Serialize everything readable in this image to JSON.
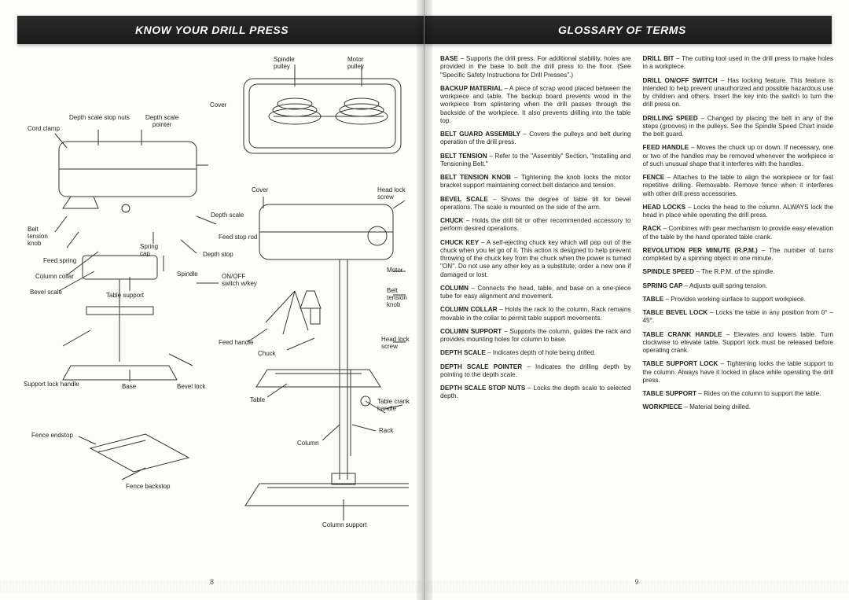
{
  "left": {
    "header": "KNOW YOUR DRILL PRESS",
    "page_number": "8",
    "labels": {
      "spindle_pulley": "Spindle\npulley",
      "motor_pulley": "Motor\npulley",
      "cover_top": "Cover",
      "depth_scale_stop_nuts": "Depth scale stop nuts",
      "depth_scale_pointer": "Depth scale\npointer",
      "cord_clamp": "Cord clamp",
      "depth_scale": "Depth scale",
      "belt_tension_knob_l": "Belt\ntension\nknob",
      "spring_cap": "Spring\ncap",
      "feed_stop_rod": "Feed stop rod",
      "feed_spring": "Feed spring",
      "depth_stop": "Depth stop",
      "column_collar": "Column collar",
      "spindle": "Spindle",
      "bevel_scale": "Bevel scale",
      "table_support_l": "Table support",
      "onoff_switch": "ON/OFF\nswitch w/key",
      "support_lock_handle": "Support lock handle",
      "base": "Base",
      "bevel_lock": "Bevel lock",
      "feed_handle": "Feed handle",
      "chuck": "Chuck",
      "table": "Table",
      "column": "Column",
      "fence_endstop": "Fence endstop",
      "fence_backstop": "Fence backstop",
      "column_support": "Column support",
      "cover_r": "Cover",
      "head_lock_screw_top": "Head lock\nscrew",
      "motor": "Motor",
      "belt_tension_knob_r": "Belt\ntension\nknob",
      "head_lock_screw_bot": "Head lock\nscrew",
      "table_crank_handle": "Table crank\nhandle",
      "rack": "Rack"
    }
  },
  "right": {
    "header": "GLOSSARY OF TERMS",
    "page_number": "9",
    "entries": [
      {
        "term": "BASE",
        "def": "– Supports the drill press. For additional stability, holes are provided in the base to bolt the drill press to the floor. (See \"Specific Safety Instructions for Drill Presses\".)"
      },
      {
        "term": "BACKUP MATERIAL",
        "def": "– A piece of scrap wood placed between the workpiece and table. The backup board prevents wood in the workpiece from splintering when the drill passes through the backside of the workpiece. It also prevents drilling into the table top."
      },
      {
        "term": "BELT GUARD ASSEMBLY",
        "def": "– Covers the pulleys and belt during operation of the drill press."
      },
      {
        "term": "BELT TENSION",
        "def": "– Refer to the \"Assembly\" Section, \"Installing and Tensioning Belt.\""
      },
      {
        "term": "BELT TENSION KNOB",
        "def": "– Tightening the knob locks the motor bracket support maintaining correct belt distance and tension."
      },
      {
        "term": "BEVEL SCALE",
        "def": "– Shows the degree of table tilt for bevel operations. The scale is mounted on the side of the arm."
      },
      {
        "term": "CHUCK",
        "def": "– Holds the drill bit or other recommended accessory to perform desired operations."
      },
      {
        "term": "CHUCK KEY",
        "def": "– A self-ejecting chuck key which will pop out of the chuck when you let go of it. This action is designed to help prevent throwing of the chuck key from the chuck when the power is turned \"ON\". Do not use any other key as a substitute; order a new one if damaged or lost."
      },
      {
        "term": "COLUMN",
        "def": "– Connects the head, table, and base on a one-piece tube for easy alignment and movement."
      },
      {
        "term": "COLUMN COLLAR",
        "def": "– Holds the rack to the column. Rack remains movable in the collar to permit table support movements."
      },
      {
        "term": "COLUMN SUPPORT",
        "def": "– Supports the column, guides the rack and provides mounting holes for column to base."
      },
      {
        "term": "DEPTH SCALE",
        "def": "– Indicates depth of hole being drilled."
      },
      {
        "term": "DEPTH SCALE POINTER",
        "def": "– Indicates the drilling depth by pointing to the depth scale."
      },
      {
        "term": "DEPTH SCALE STOP NUTS",
        "def": "– Locks the depth scale to selected depth."
      },
      {
        "term": "DRILL BIT",
        "def": "– The cutting tool used in the drill press to make holes in a workpiece."
      },
      {
        "term": "DRILL ON/OFF SWITCH",
        "def": "– Has locking feature. This feature is intended to help prevent unauthorized and possible hazardous use by children and others. Insert the key into the switch to turn the drill press on."
      },
      {
        "term": "DRILLING SPEED",
        "def": "– Changed by placing the belt in any of the steps (grooves) in the pulleys. See the Spindle Speed Chart inside the belt guard."
      },
      {
        "term": "FEED HANDLE",
        "def": "– Moves the chuck up or down. If necessary, one or two of the handles may be removed whenever the workpiece is of such unusual shape that it interferes with the handles."
      },
      {
        "term": "FENCE",
        "def": "– Attaches to the table to align the workpiece or for fast repetitive drilling. Removable. Remove fence when it interferes with other drill press accessories."
      },
      {
        "term": "HEAD LOCKS",
        "def": "– Locks the head to the column. ALWAYS lock the head in place while operating the drill press."
      },
      {
        "term": "RACK",
        "def": "– Combines with gear mechanism to provide easy elevation of the table by the hand operated table crank."
      },
      {
        "term": "REVOLUTION PER MINUTE (R.P.M.)",
        "def": "– The number of turns completed by a spinning object in one minute."
      },
      {
        "term": "SPINDLE SPEED",
        "def": "– The R.P.M. of the spindle."
      },
      {
        "term": "SPRING CAP",
        "def": "– Adjusts quill spring tension."
      },
      {
        "term": "TABLE",
        "def": "– Provides working surface to support workpiece."
      },
      {
        "term": "TABLE BEVEL LOCK",
        "def": "– Locks the table in any position from 0° – 45°."
      },
      {
        "term": "TABLE CRANK HANDLE",
        "def": "– Elevates and lowers table. Turn clockwise to elevate table. Support lock must be released before operating crank."
      },
      {
        "term": "TABLE SUPPORT LOCK",
        "def": "– Tightening locks the table support to the column. Always have it locked in place while operating the drill press."
      },
      {
        "term": "TABLE SUPPORT",
        "def": "– Rides on the column to support the table."
      },
      {
        "term": "WORKPIECE",
        "def": "– Material being drilled."
      }
    ]
  },
  "style": {
    "header_bg": "#1e1e1e",
    "header_fg": "#ffffff",
    "text_color": "#222222",
    "label_fontsize": 8,
    "glossary_fontsize": 8.2
  }
}
